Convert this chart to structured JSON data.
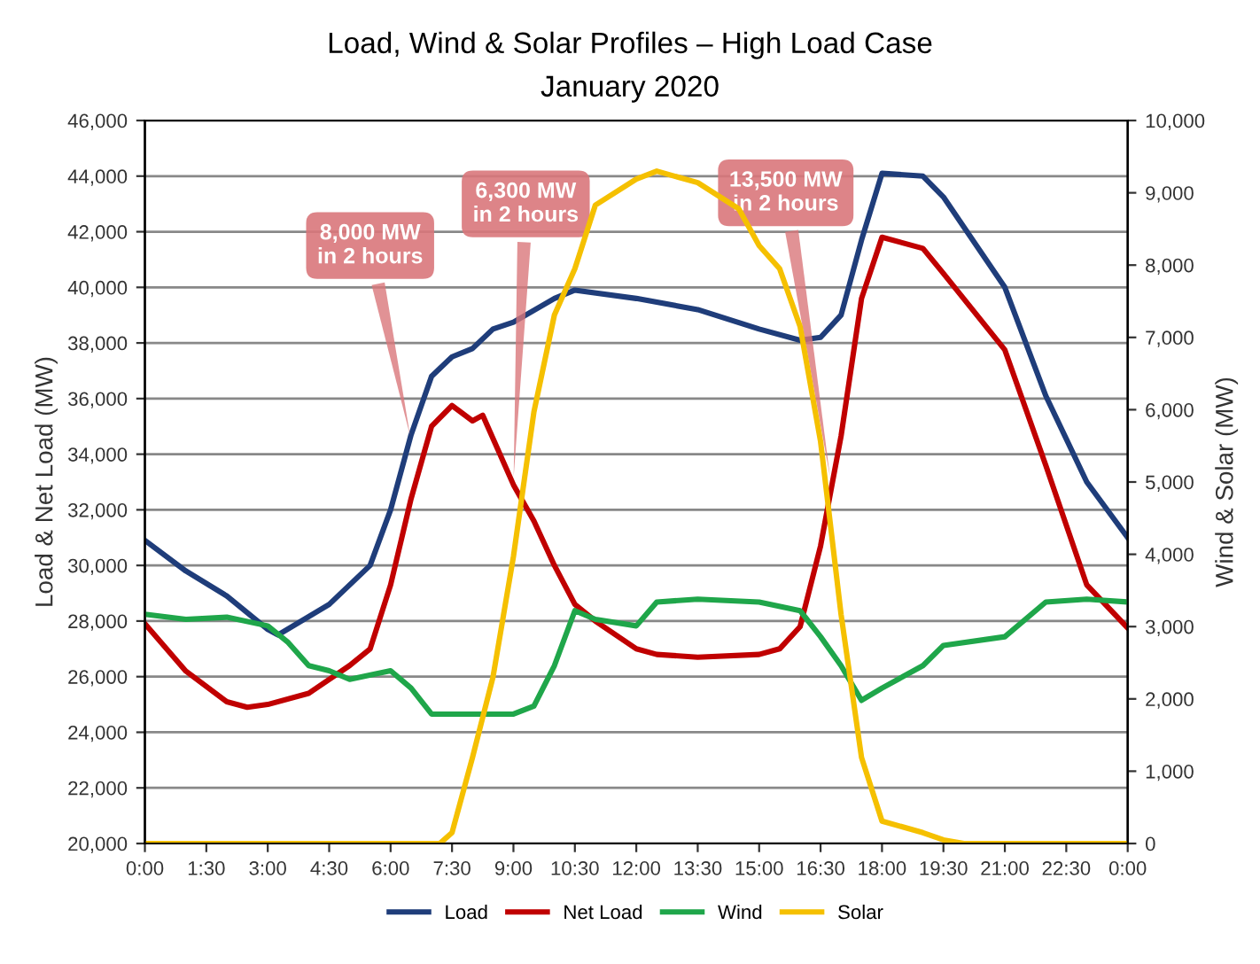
{
  "chart_data": {
    "type": "line",
    "title": "Load, Wind & Solar Profiles – High Load Case",
    "subtitle": "January 2020",
    "ylabel": "Load & Net Load (MW)",
    "y2label": "Wind & Solar (MW)",
    "xlim": [
      0,
      24
    ],
    "xticks": [
      {
        "value": 0,
        "label": "0:00"
      },
      {
        "value": 1.5,
        "label": "1:30"
      },
      {
        "value": 3,
        "label": "3:00"
      },
      {
        "value": 4.5,
        "label": "4:30"
      },
      {
        "value": 6,
        "label": "6:00"
      },
      {
        "value": 7.5,
        "label": "7:30"
      },
      {
        "value": 9,
        "label": "9:00"
      },
      {
        "value": 10.5,
        "label": "10:30"
      },
      {
        "value": 12,
        "label": "12:00"
      },
      {
        "value": 13.5,
        "label": "13:30"
      },
      {
        "value": 15,
        "label": "15:00"
      },
      {
        "value": 16.5,
        "label": "16:30"
      },
      {
        "value": 18,
        "label": "18:00"
      },
      {
        "value": 19.5,
        "label": "19:30"
      },
      {
        "value": 21,
        "label": "21:00"
      },
      {
        "value": 22.5,
        "label": "22:30"
      },
      {
        "value": 24,
        "label": "0:00"
      }
    ],
    "ylim": [
      20000,
      46000
    ],
    "yticks": [
      {
        "value": 20000,
        "label": "20,000"
      },
      {
        "value": 22000,
        "label": "22,000"
      },
      {
        "value": 24000,
        "label": "24,000"
      },
      {
        "value": 26000,
        "label": "26,000"
      },
      {
        "value": 28000,
        "label": "28,000"
      },
      {
        "value": 30000,
        "label": "30,000"
      },
      {
        "value": 32000,
        "label": "32,000"
      },
      {
        "value": 34000,
        "label": "34,000"
      },
      {
        "value": 36000,
        "label": "36,000"
      },
      {
        "value": 38000,
        "label": "38,000"
      },
      {
        "value": 40000,
        "label": "40,000"
      },
      {
        "value": 42000,
        "label": "42,000"
      },
      {
        "value": 44000,
        "label": "44,000"
      },
      {
        "value": 46000,
        "label": "46,000"
      }
    ],
    "y2lim": [
      0,
      10000
    ],
    "y2ticks": [
      0,
      {
        "value": 1000,
        "label": "1,000"
      },
      {
        "value": 2000,
        "label": "2,000"
      },
      {
        "value": 3000,
        "label": "3,000"
      },
      {
        "value": 4000,
        "label": "4,000"
      },
      {
        "value": 5000,
        "label": "5,000"
      },
      {
        "value": 6000,
        "label": "6,000"
      },
      {
        "value": 7000,
        "label": "7,000"
      },
      {
        "value": 8000,
        "label": "8,000"
      },
      {
        "value": 9000,
        "label": "9,000"
      },
      {
        "value": 10000,
        "label": "10,000"
      }
    ],
    "grid": "y",
    "legend": "bottom",
    "marker": "none",
    "line_style": "solid",
    "series": [
      {
        "name": "Load",
        "color": "#1f3d7a",
        "x": [
          0,
          1,
          2,
          3,
          3.25,
          4.5,
          5.5,
          6,
          6.5,
          7,
          7.5,
          8,
          8.5,
          9,
          10,
          10.5,
          12,
          13.5,
          15,
          16,
          16.5,
          17,
          17.5,
          18,
          19,
          19.5,
          21,
          22,
          23,
          24
        ],
        "values": [
          30900,
          29800,
          28900,
          27700,
          27500,
          28600,
          30000,
          32000,
          34700,
          36800,
          37500,
          37800,
          38500,
          38750,
          39600,
          39900,
          39600,
          39200,
          38500,
          38100,
          38200,
          39000,
          41700,
          44100,
          44000,
          43250,
          40000,
          36100,
          33000,
          31000
        ]
      },
      {
        "name": "Net Load",
        "color": "#c00000",
        "x": [
          0,
          1,
          2,
          2.5,
          3,
          4,
          5,
          5.5,
          6,
          6.5,
          7,
          7.5,
          8,
          8.25,
          9,
          9.5,
          10,
          10.5,
          11,
          12,
          12.5,
          13.5,
          15,
          15.5,
          16,
          16.5,
          17,
          17.5,
          18,
          19,
          19.5,
          21,
          22,
          23,
          24
        ],
        "values": [
          27900,
          26200,
          25100,
          24900,
          25000,
          25400,
          26400,
          27000,
          29300,
          32400,
          35000,
          35750,
          35200,
          35400,
          32900,
          31600,
          30000,
          28600,
          28000,
          27000,
          26800,
          26700,
          26800,
          27000,
          27800,
          30700,
          34650,
          39600,
          41800,
          41400,
          40500,
          37750,
          33600,
          29300,
          27750
        ]
      },
      {
        "name": "Wind",
        "color": "#1fa64a",
        "axis": "y2",
        "x": [
          0,
          1,
          2,
          3,
          3.5,
          4,
          4.5,
          5,
          6,
          6.5,
          7,
          8,
          9,
          9.5,
          10,
          10.5,
          11,
          12,
          12.5,
          13.5,
          15,
          16,
          16.5,
          17,
          17.5,
          18,
          19,
          19.5,
          21,
          22,
          23,
          24
        ],
        "values": [
          3170,
          3100,
          3130,
          3010,
          2780,
          2460,
          2390,
          2270,
          2390,
          2150,
          1790,
          1790,
          1790,
          1900,
          2460,
          3220,
          3100,
          3010,
          3340,
          3380,
          3340,
          3220,
          2860,
          2460,
          1980,
          2150,
          2460,
          2740,
          2860,
          3340,
          3380,
          3340
        ]
      },
      {
        "name": "Solar",
        "color": "#f5c000",
        "axis": "y2",
        "x": [
          0,
          7.2,
          7.5,
          8,
          8.5,
          9,
          9.5,
          10,
          10.5,
          11,
          12,
          12.5,
          13.5,
          14.5,
          15,
          15.5,
          16,
          16.5,
          17,
          17.5,
          18,
          19,
          19.5,
          20,
          24
        ],
        "values": [
          0,
          0,
          150,
          1190,
          2300,
          3970,
          5970,
          7310,
          7950,
          8830,
          9190,
          9300,
          9140,
          8780,
          8270,
          7950,
          7150,
          5560,
          3170,
          1190,
          310,
          150,
          50,
          0,
          0
        ]
      }
    ],
    "annotations": [
      {
        "text": "8,000 MW\nin 2 hours",
        "x": 6.5,
        "y": 34500
      },
      {
        "text": "6,300 MW\nin 2 hours",
        "x": 9,
        "y": 33000
      },
      {
        "text": "13,500 MW\nin 2 hours",
        "x": 16.75,
        "y": 33000
      }
    ]
  }
}
